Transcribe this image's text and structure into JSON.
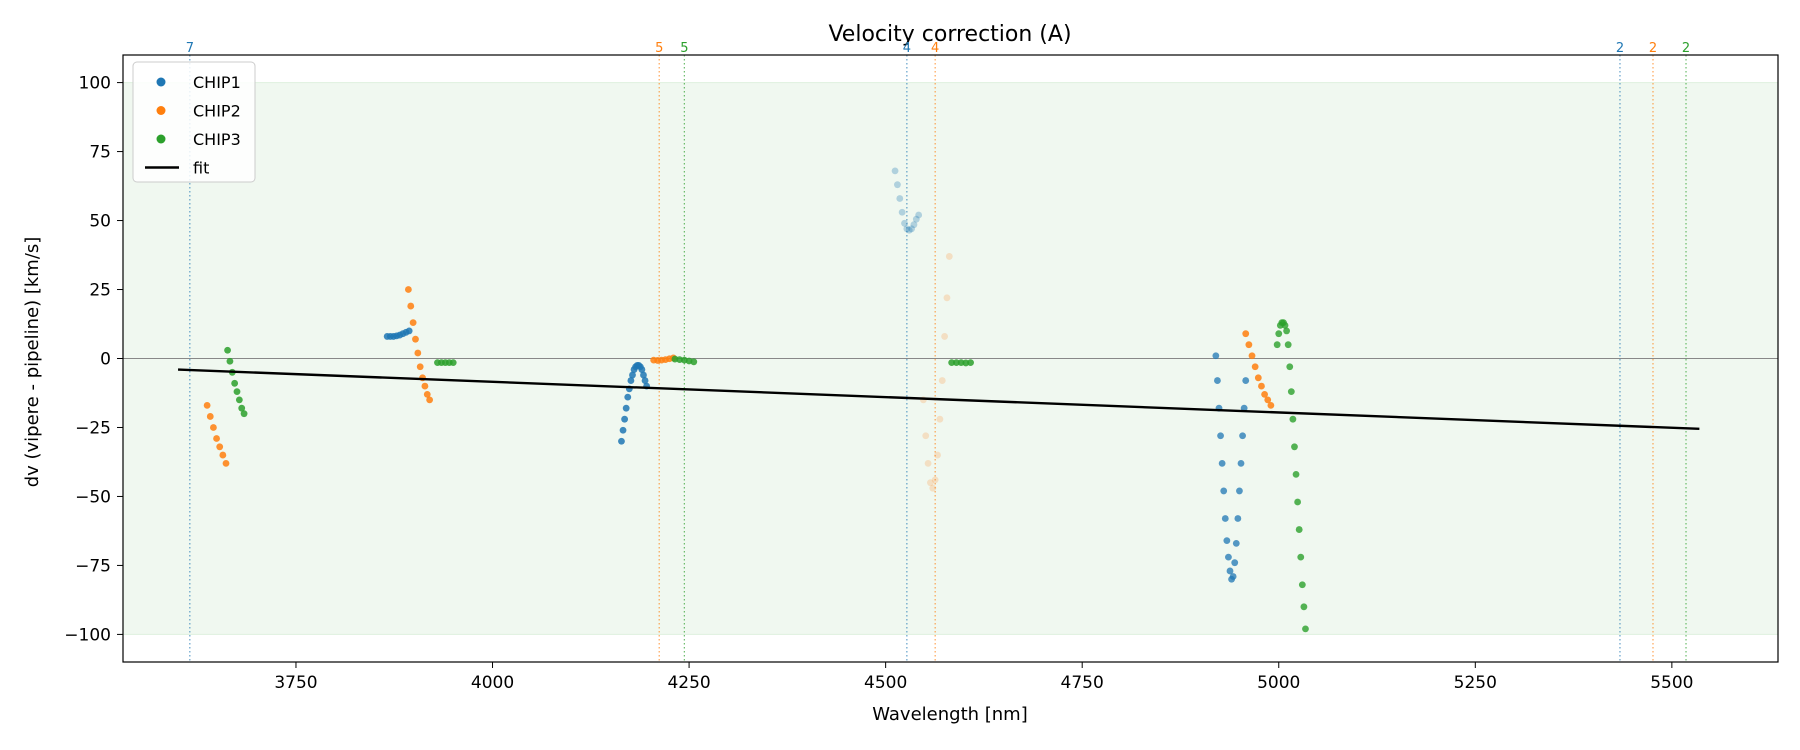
{
  "chart_data": {
    "type": "scatter",
    "title": "Velocity correction (A)",
    "xlabel": "Wavelength [nm]",
    "ylabel": "dv (vipere - pipeline) [km/s]",
    "xlim": [
      3530,
      5635
    ],
    "ylim": [
      -110,
      110
    ],
    "xticks": [
      3750,
      4000,
      4250,
      4500,
      4750,
      5000,
      5250,
      5500
    ],
    "yticks": [
      100,
      75,
      50,
      25,
      0,
      -25,
      -50,
      -75,
      -100
    ],
    "shaded_band": [
      -100,
      100
    ],
    "shaded_color": "#2ca02c",
    "zero_line": 0,
    "grid": false,
    "legend_position": "top-left",
    "colors": {
      "CHIP1": "#1f77b4",
      "CHIP2": "#ff7f0e",
      "CHIP3": "#2ca02c",
      "fit": "#000000"
    },
    "legend": [
      {
        "label": "CHIP1",
        "kind": "point",
        "color": "#1f77b4"
      },
      {
        "label": "CHIP2",
        "kind": "point",
        "color": "#ff7f0e"
      },
      {
        "label": "CHIP3",
        "kind": "point",
        "color": "#2ca02c"
      },
      {
        "label": "fit",
        "kind": "line",
        "color": "#000000"
      }
    ],
    "series": [
      {
        "name": "CHIP1",
        "color": "#1f77b4",
        "segments": [
          {
            "opacity": 0.85,
            "points": [
              [
                3866,
                8
              ],
              [
                3870,
                8
              ],
              [
                3874,
                8
              ],
              [
                3878,
                8.2
              ],
              [
                3882,
                8.5
              ],
              [
                3886,
                9
              ],
              [
                3890,
                9.5
              ],
              [
                3894,
                10
              ]
            ]
          },
          {
            "opacity": 0.85,
            "points": [
              [
                4164,
                -30
              ],
              [
                4166,
                -26
              ],
              [
                4168,
                -22
              ],
              [
                4170,
                -18
              ],
              [
                4172,
                -14
              ],
              [
                4174,
                -11
              ],
              [
                4176,
                -8
              ],
              [
                4178,
                -6
              ],
              [
                4180,
                -4
              ],
              [
                4182,
                -3
              ],
              [
                4184,
                -2.5
              ],
              [
                4186,
                -2.5
              ],
              [
                4188,
                -3
              ],
              [
                4190,
                -4
              ],
              [
                4192,
                -6
              ],
              [
                4194,
                -8
              ],
              [
                4196,
                -10
              ]
            ]
          },
          {
            "opacity": 0.3,
            "points": [
              [
                4512,
                68
              ],
              [
                4515,
                63
              ],
              [
                4518,
                58
              ],
              [
                4521,
                53
              ],
              [
                4524,
                49
              ],
              [
                4527,
                47
              ],
              [
                4530,
                46.5
              ],
              [
                4533,
                47
              ],
              [
                4536,
                48.5
              ],
              [
                4539,
                50.5
              ],
              [
                4542,
                52
              ]
            ]
          },
          {
            "opacity": 0.75,
            "points": [
              [
                4920,
                1
              ],
              [
                4922,
                -8
              ],
              [
                4924,
                -18
              ],
              [
                4926,
                -28
              ],
              [
                4928,
                -38
              ],
              [
                4930,
                -48
              ],
              [
                4932,
                -58
              ],
              [
                4934,
                -66
              ],
              [
                4936,
                -72
              ],
              [
                4938,
                -77
              ],
              [
                4940,
                -80
              ],
              [
                4942,
                -79
              ],
              [
                4944,
                -74
              ],
              [
                4946,
                -67
              ],
              [
                4948,
                -58
              ],
              [
                4950,
                -48
              ],
              [
                4952,
                -38
              ],
              [
                4954,
                -28
              ],
              [
                4956,
                -18
              ],
              [
                4958,
                -8
              ]
            ]
          }
        ]
      },
      {
        "name": "CHIP2",
        "color": "#ff7f0e",
        "segments": [
          {
            "opacity": 0.85,
            "points": [
              [
                3637,
                -17
              ],
              [
                3641,
                -21
              ],
              [
                3645,
                -25
              ],
              [
                3649,
                -29
              ],
              [
                3653,
                -32
              ],
              [
                3657,
                -35
              ],
              [
                3661,
                -38
              ]
            ]
          },
          {
            "opacity": 0.85,
            "points": [
              [
                3893,
                25
              ],
              [
                3896,
                19
              ],
              [
                3899,
                13
              ],
              [
                3902,
                7
              ],
              [
                3905,
                2
              ],
              [
                3908,
                -3
              ],
              [
                3911,
                -7
              ],
              [
                3914,
                -10
              ],
              [
                3917,
                -13
              ],
              [
                3920,
                -15
              ]
            ]
          },
          {
            "opacity": 0.85,
            "points": [
              [
                4205,
                -0.6
              ],
              [
                4210,
                -0.7
              ],
              [
                4215,
                -0.6
              ],
              [
                4220,
                -0.4
              ],
              [
                4225,
                -0.1
              ],
              [
                4230,
                0.2
              ]
            ]
          },
          {
            "opacity": 0.2,
            "points": [
              [
                4548,
                -15
              ],
              [
                4551,
                -28
              ],
              [
                4554,
                -38
              ],
              [
                4557,
                -45
              ],
              [
                4560,
                -47
              ],
              [
                4563,
                -44
              ],
              [
                4566,
                -35
              ],
              [
                4569,
                -22
              ],
              [
                4572,
                -8
              ],
              [
                4575,
                8
              ],
              [
                4578,
                22
              ],
              [
                4581,
                37
              ]
            ]
          },
          {
            "opacity": 0.85,
            "points": [
              [
                4958,
                9
              ],
              [
                4962,
                5
              ],
              [
                4966,
                1
              ],
              [
                4970,
                -3
              ],
              [
                4974,
                -7
              ],
              [
                4978,
                -10
              ],
              [
                4982,
                -13
              ],
              [
                4986,
                -15
              ],
              [
                4990,
                -17
              ]
            ]
          }
        ]
      },
      {
        "name": "CHIP3",
        "color": "#2ca02c",
        "segments": [
          {
            "opacity": 0.85,
            "points": [
              [
                3663,
                3
              ],
              [
                3666,
                -1
              ],
              [
                3669,
                -5
              ],
              [
                3672,
                -9
              ],
              [
                3675,
                -12
              ],
              [
                3678,
                -15
              ],
              [
                3681,
                -18
              ],
              [
                3684,
                -20
              ]
            ]
          },
          {
            "opacity": 0.85,
            "points": [
              [
                3930,
                -1.5
              ],
              [
                3935,
                -1.5
              ],
              [
                3940,
                -1.5
              ],
              [
                3945,
                -1.5
              ],
              [
                3950,
                -1.5
              ]
            ]
          },
          {
            "opacity": 0.85,
            "points": [
              [
                4232,
                -0.2
              ],
              [
                4238,
                -0.4
              ],
              [
                4244,
                -0.6
              ],
              [
                4250,
                -0.9
              ],
              [
                4256,
                -1.2
              ]
            ]
          },
          {
            "opacity": 0.85,
            "points": [
              [
                4584,
                -1.5
              ],
              [
                4590,
                -1.5
              ],
              [
                4596,
                -1.5
              ],
              [
                4602,
                -1.6
              ],
              [
                4608,
                -1.5
              ]
            ]
          },
          {
            "opacity": 0.8,
            "points": [
              [
                4998,
                5
              ],
              [
                5000,
                9
              ],
              [
                5002,
                12
              ],
              [
                5004,
                13
              ],
              [
                5006,
                13
              ],
              [
                5008,
                12
              ],
              [
                5010,
                10
              ],
              [
                5012,
                5
              ],
              [
                5014,
                -3
              ],
              [
                5016,
                -12
              ],
              [
                5018,
                -22
              ],
              [
                5020,
                -32
              ],
              [
                5022,
                -42
              ],
              [
                5024,
                -52
              ],
              [
                5026,
                -62
              ],
              [
                5028,
                -72
              ],
              [
                5030,
                -82
              ],
              [
                5032,
                -90
              ],
              [
                5034,
                -98
              ]
            ]
          }
        ]
      }
    ],
    "fit": {
      "name": "fit",
      "color": "#000000",
      "x": [
        3600,
        5535
      ],
      "y": [
        -4,
        -25.5
      ]
    },
    "order_markers": [
      {
        "x": 3615,
        "label": "7",
        "color": "#1f77b4"
      },
      {
        "x": 4212,
        "label": "5",
        "color": "#ff7f0e"
      },
      {
        "x": 4244,
        "label": "5",
        "color": "#2ca02c"
      },
      {
        "x": 4527,
        "label": "4",
        "color": "#1f77b4"
      },
      {
        "x": 4563,
        "label": "4",
        "color": "#ff7f0e"
      },
      {
        "x": 5434,
        "label": "2",
        "color": "#1f77b4"
      },
      {
        "x": 5476,
        "label": "2",
        "color": "#ff7f0e"
      },
      {
        "x": 5518,
        "label": "2",
        "color": "#2ca02c"
      }
    ]
  }
}
